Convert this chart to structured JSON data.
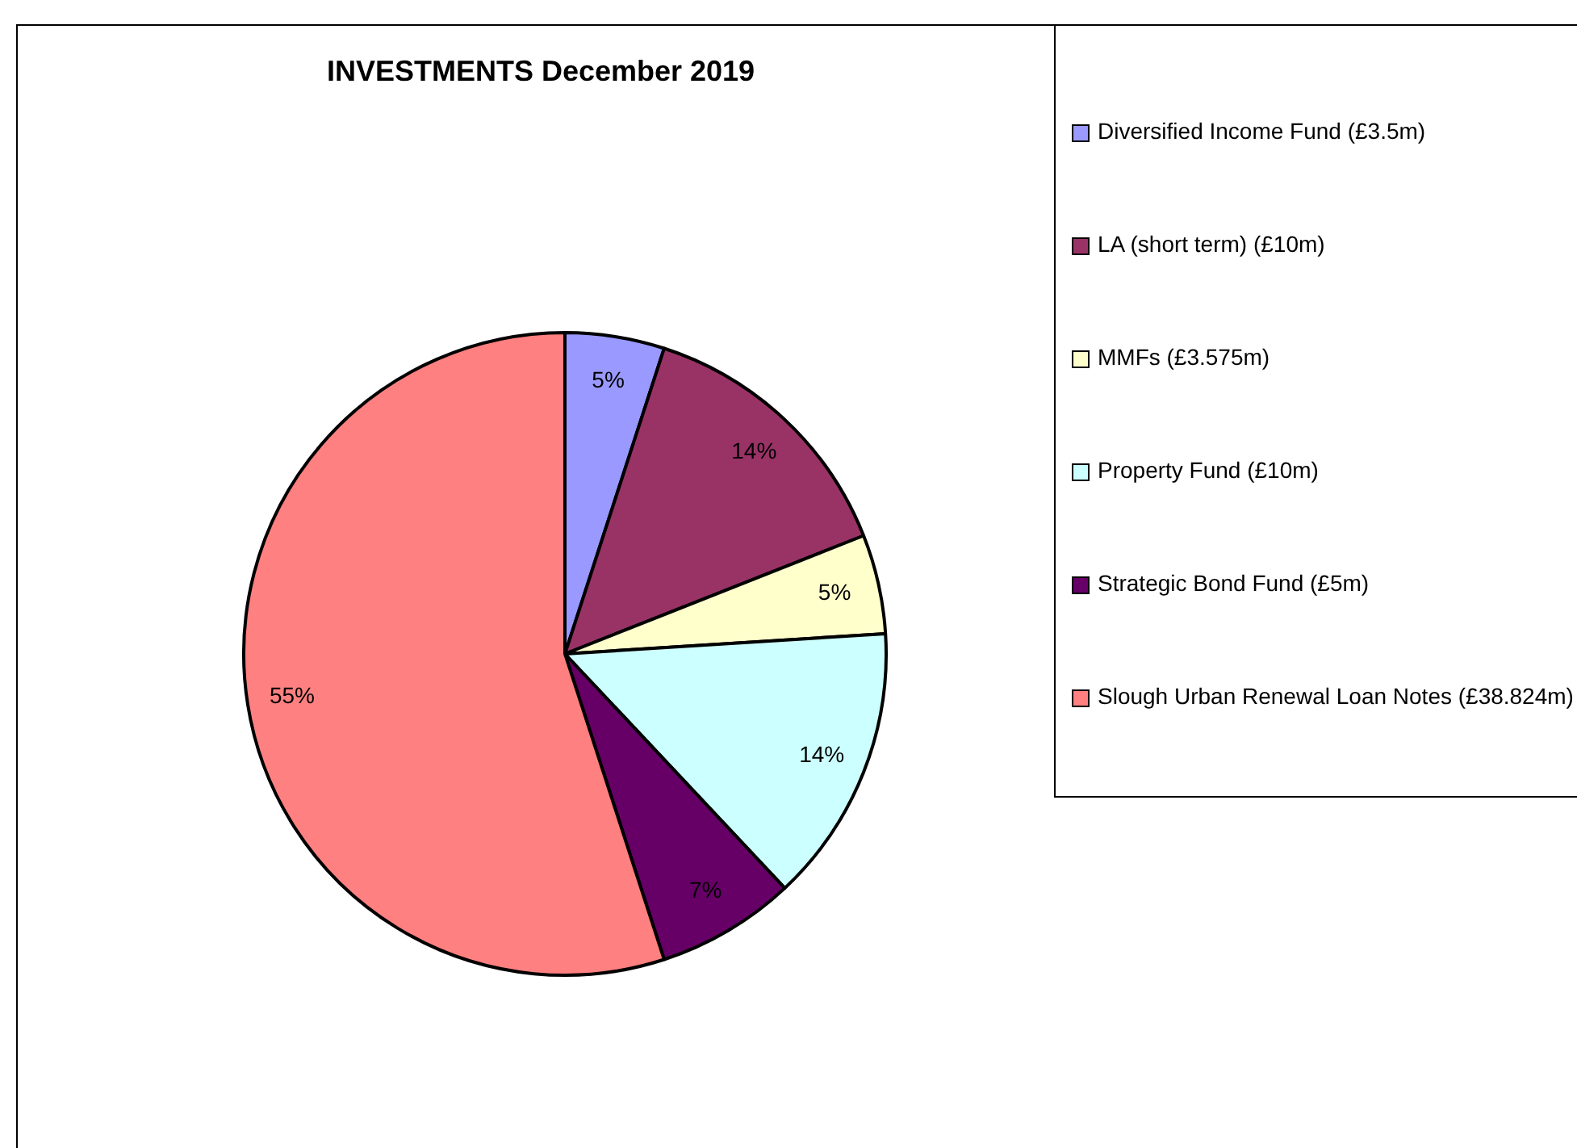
{
  "chart_data": {
    "type": "pie",
    "title": "INVESTMENTS December 2019",
    "categories": [
      "Diversified Income Fund (£3.5m)",
      "LA (short term) (£10m)",
      "MMFs (£3.575m)",
      "Property Fund (£10m)",
      "Strategic Bond Fund (£5m)",
      "Slough Urban Renewal Loan Notes (£38.824m)"
    ],
    "values": [
      5,
      14,
      5,
      14,
      7,
      55
    ],
    "value_labels": [
      "5%",
      "14%",
      "5%",
      "14%",
      "7%",
      "55%"
    ],
    "colors": [
      "#9999ff",
      "#993366",
      "#ffffcc",
      "#ccffff",
      "#660066",
      "#ff8080"
    ],
    "legend": "right"
  }
}
